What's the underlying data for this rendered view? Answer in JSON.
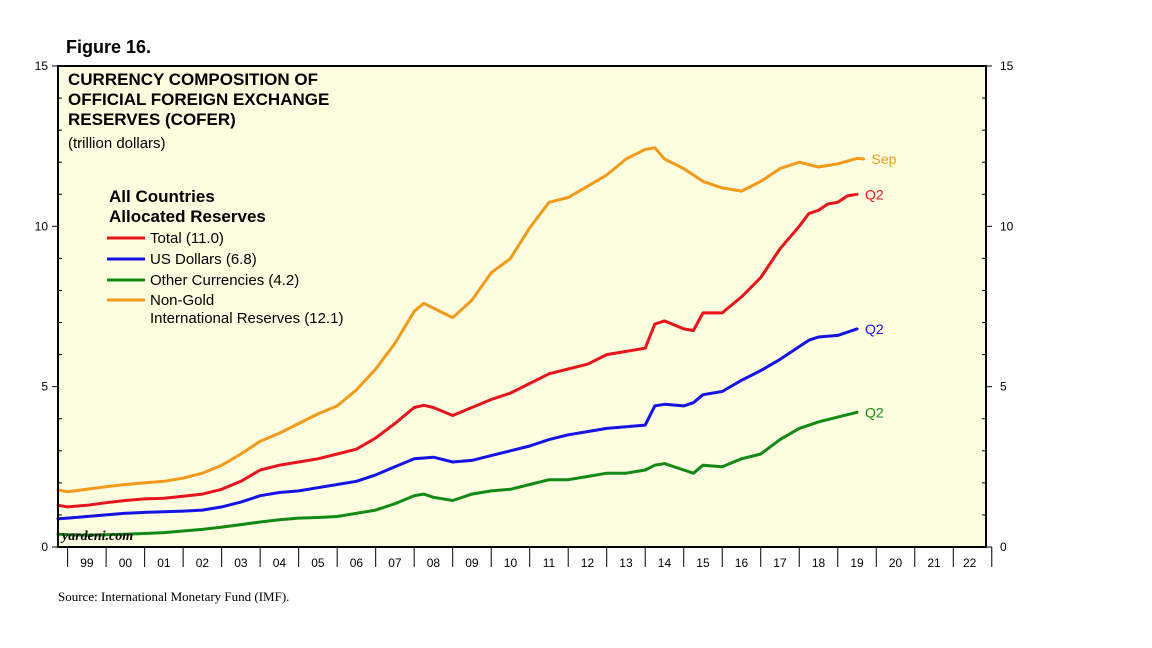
{
  "figure_label": "Figure 16.",
  "source": "Source: International Monetary Fund (IMF).",
  "watermark": "yardeni.com",
  "chart_data": {
    "type": "line",
    "title": [
      "CURRENCY COMPOSITION OF",
      "OFFICIAL FOREIGN EXCHANGE",
      "RESERVES (COFER)"
    ],
    "subtitle": "(trillion dollars)",
    "legend_title": [
      "All Countries",
      "Allocated Reserves"
    ],
    "ylim": [
      0,
      15
    ],
    "yticks": [
      0,
      5,
      10,
      15
    ],
    "xlim": [
      1998.75,
      2022.85
    ],
    "xtick_labels": [
      "99",
      "00",
      "01",
      "02",
      "03",
      "04",
      "05",
      "06",
      "07",
      "08",
      "09",
      "10",
      "11",
      "12",
      "13",
      "14",
      "15",
      "16",
      "17",
      "18",
      "19",
      "20",
      "21",
      "22"
    ],
    "background_color": "#fdfde0",
    "grid": false,
    "legend_position": "top-left",
    "series": [
      {
        "name": "Total (11.0)",
        "color": "#e8141c",
        "end_label": "Q2",
        "points": [
          [
            1998.75,
            1.3
          ],
          [
            1999.0,
            1.25
          ],
          [
            1999.5,
            1.3
          ],
          [
            2000.0,
            1.38
          ],
          [
            2000.5,
            1.45
          ],
          [
            2001.0,
            1.5
          ],
          [
            2001.5,
            1.52
          ],
          [
            2002.0,
            1.58
          ],
          [
            2002.5,
            1.65
          ],
          [
            2003.0,
            1.8
          ],
          [
            2003.5,
            2.05
          ],
          [
            2004.0,
            2.4
          ],
          [
            2004.5,
            2.55
          ],
          [
            2005.0,
            2.65
          ],
          [
            2005.5,
            2.75
          ],
          [
            2006.0,
            2.9
          ],
          [
            2006.5,
            3.05
          ],
          [
            2007.0,
            3.4
          ],
          [
            2007.5,
            3.85
          ],
          [
            2008.0,
            4.35
          ],
          [
            2008.25,
            4.42
          ],
          [
            2008.5,
            4.35
          ],
          [
            2009.0,
            4.1
          ],
          [
            2009.5,
            4.35
          ],
          [
            2010.0,
            4.6
          ],
          [
            2010.5,
            4.8
          ],
          [
            2011.0,
            5.1
          ],
          [
            2011.5,
            5.4
          ],
          [
            2012.0,
            5.55
          ],
          [
            2012.5,
            5.7
          ],
          [
            2013.0,
            6.0
          ],
          [
            2013.5,
            6.1
          ],
          [
            2014.0,
            6.2
          ],
          [
            2014.25,
            6.95
          ],
          [
            2014.5,
            7.05
          ],
          [
            2015.0,
            6.8
          ],
          [
            2015.25,
            6.75
          ],
          [
            2015.5,
            7.3
          ],
          [
            2016.0,
            7.3
          ],
          [
            2016.5,
            7.8
          ],
          [
            2017.0,
            8.4
          ],
          [
            2017.5,
            9.3
          ],
          [
            2018.0,
            10.0
          ],
          [
            2018.25,
            10.4
          ],
          [
            2018.5,
            10.5
          ],
          [
            2018.75,
            10.7
          ],
          [
            2019.0,
            10.75
          ],
          [
            2019.25,
            10.95
          ],
          [
            2019.5,
            11.0
          ]
        ]
      },
      {
        "name": "US Dollars (6.8)",
        "color": "#1414e6",
        "end_label": "Q2",
        "points": [
          [
            1998.75,
            0.88
          ],
          [
            1999.0,
            0.9
          ],
          [
            1999.5,
            0.95
          ],
          [
            2000.0,
            1.0
          ],
          [
            2000.5,
            1.05
          ],
          [
            2001.0,
            1.08
          ],
          [
            2001.5,
            1.1
          ],
          [
            2002.0,
            1.12
          ],
          [
            2002.5,
            1.15
          ],
          [
            2003.0,
            1.25
          ],
          [
            2003.5,
            1.4
          ],
          [
            2004.0,
            1.6
          ],
          [
            2004.5,
            1.7
          ],
          [
            2005.0,
            1.75
          ],
          [
            2005.5,
            1.85
          ],
          [
            2006.0,
            1.95
          ],
          [
            2006.5,
            2.05
          ],
          [
            2007.0,
            2.25
          ],
          [
            2007.5,
            2.5
          ],
          [
            2008.0,
            2.75
          ],
          [
            2008.5,
            2.8
          ],
          [
            2009.0,
            2.65
          ],
          [
            2009.5,
            2.7
          ],
          [
            2010.0,
            2.85
          ],
          [
            2010.5,
            3.0
          ],
          [
            2011.0,
            3.15
          ],
          [
            2011.5,
            3.35
          ],
          [
            2012.0,
            3.5
          ],
          [
            2012.5,
            3.6
          ],
          [
            2013.0,
            3.7
          ],
          [
            2013.5,
            3.75
          ],
          [
            2014.0,
            3.8
          ],
          [
            2014.25,
            4.4
          ],
          [
            2014.5,
            4.45
          ],
          [
            2015.0,
            4.4
          ],
          [
            2015.25,
            4.5
          ],
          [
            2015.5,
            4.75
          ],
          [
            2016.0,
            4.85
          ],
          [
            2016.5,
            5.2
          ],
          [
            2017.0,
            5.5
          ],
          [
            2017.5,
            5.85
          ],
          [
            2018.0,
            6.25
          ],
          [
            2018.25,
            6.45
          ],
          [
            2018.5,
            6.55
          ],
          [
            2019.0,
            6.6
          ],
          [
            2019.25,
            6.7
          ],
          [
            2019.5,
            6.8
          ]
        ]
      },
      {
        "name": "Other Currencies (4.2)",
        "color": "#138a13",
        "end_label": "Q2",
        "points": [
          [
            1998.75,
            0.4
          ],
          [
            1999.0,
            0.38
          ],
          [
            1999.5,
            0.37
          ],
          [
            2000.0,
            0.38
          ],
          [
            2000.5,
            0.4
          ],
          [
            2001.0,
            0.42
          ],
          [
            2001.5,
            0.45
          ],
          [
            2002.0,
            0.5
          ],
          [
            2002.5,
            0.55
          ],
          [
            2003.0,
            0.62
          ],
          [
            2003.5,
            0.7
          ],
          [
            2004.0,
            0.78
          ],
          [
            2004.5,
            0.85
          ],
          [
            2005.0,
            0.9
          ],
          [
            2005.5,
            0.92
          ],
          [
            2006.0,
            0.95
          ],
          [
            2006.5,
            1.05
          ],
          [
            2007.0,
            1.15
          ],
          [
            2007.5,
            1.35
          ],
          [
            2008.0,
            1.6
          ],
          [
            2008.25,
            1.65
          ],
          [
            2008.5,
            1.55
          ],
          [
            2009.0,
            1.45
          ],
          [
            2009.5,
            1.65
          ],
          [
            2010.0,
            1.75
          ],
          [
            2010.5,
            1.8
          ],
          [
            2011.0,
            1.95
          ],
          [
            2011.5,
            2.1
          ],
          [
            2012.0,
            2.1
          ],
          [
            2012.5,
            2.2
          ],
          [
            2013.0,
            2.3
          ],
          [
            2013.5,
            2.3
          ],
          [
            2014.0,
            2.4
          ],
          [
            2014.25,
            2.55
          ],
          [
            2014.5,
            2.6
          ],
          [
            2015.0,
            2.4
          ],
          [
            2015.25,
            2.3
          ],
          [
            2015.5,
            2.55
          ],
          [
            2016.0,
            2.5
          ],
          [
            2016.5,
            2.75
          ],
          [
            2017.0,
            2.9
          ],
          [
            2017.5,
            3.35
          ],
          [
            2018.0,
            3.7
          ],
          [
            2018.5,
            3.9
          ],
          [
            2019.0,
            4.05
          ],
          [
            2019.5,
            4.2
          ]
        ]
      },
      {
        "name": "Non-Gold",
        "name_line2": "International Reserves (12.1)",
        "color": "#f49a1a",
        "end_label": "Sep",
        "points": [
          [
            1998.75,
            1.78
          ],
          [
            1999.0,
            1.72
          ],
          [
            1999.5,
            1.8
          ],
          [
            2000.0,
            1.88
          ],
          [
            2000.5,
            1.95
          ],
          [
            2001.0,
            2.0
          ],
          [
            2001.5,
            2.05
          ],
          [
            2002.0,
            2.15
          ],
          [
            2002.5,
            2.3
          ],
          [
            2003.0,
            2.55
          ],
          [
            2003.5,
            2.9
          ],
          [
            2004.0,
            3.3
          ],
          [
            2004.5,
            3.55
          ],
          [
            2005.0,
            3.85
          ],
          [
            2005.5,
            4.15
          ],
          [
            2006.0,
            4.4
          ],
          [
            2006.5,
            4.9
          ],
          [
            2007.0,
            5.55
          ],
          [
            2007.5,
            6.35
          ],
          [
            2008.0,
            7.35
          ],
          [
            2008.25,
            7.6
          ],
          [
            2008.5,
            7.45
          ],
          [
            2009.0,
            7.15
          ],
          [
            2009.5,
            7.7
          ],
          [
            2010.0,
            8.55
          ],
          [
            2010.5,
            9.0
          ],
          [
            2011.0,
            9.95
          ],
          [
            2011.5,
            10.75
          ],
          [
            2012.0,
            10.9
          ],
          [
            2012.5,
            11.25
          ],
          [
            2013.0,
            11.6
          ],
          [
            2013.5,
            12.1
          ],
          [
            2014.0,
            12.4
          ],
          [
            2014.25,
            12.45
          ],
          [
            2014.5,
            12.1
          ],
          [
            2015.0,
            11.8
          ],
          [
            2015.5,
            11.4
          ],
          [
            2016.0,
            11.2
          ],
          [
            2016.5,
            11.1
          ],
          [
            2017.0,
            11.4
          ],
          [
            2017.5,
            11.8
          ],
          [
            2018.0,
            12.0
          ],
          [
            2018.5,
            11.85
          ],
          [
            2019.0,
            11.95
          ],
          [
            2019.5,
            12.12
          ],
          [
            2019.67,
            12.1
          ]
        ]
      }
    ]
  }
}
